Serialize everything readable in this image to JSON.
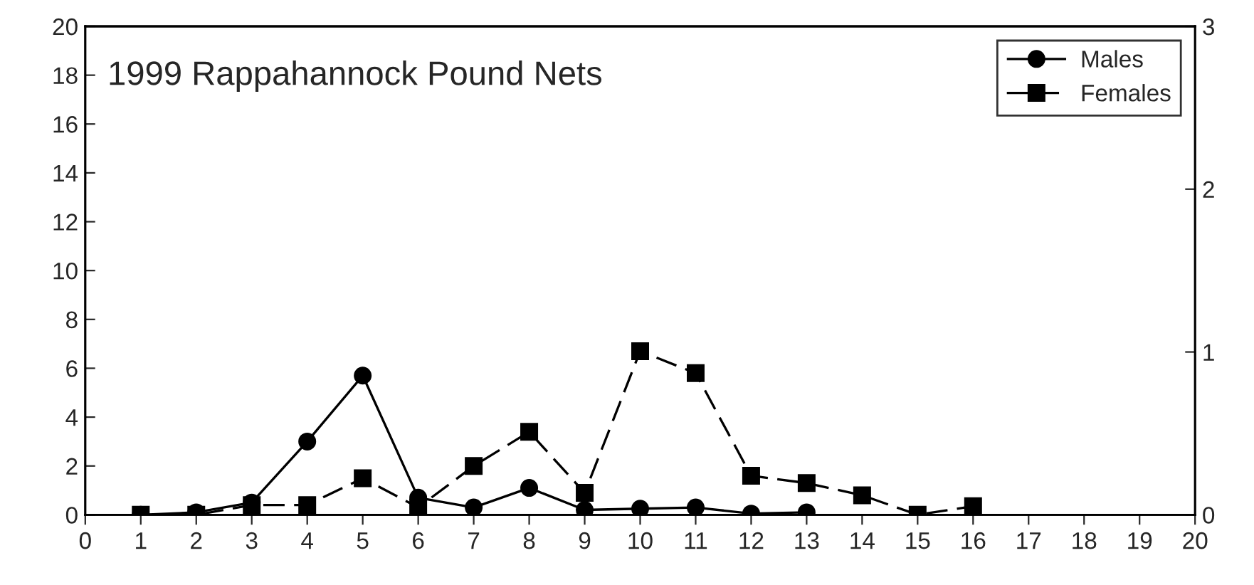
{
  "chart_data": {
    "type": "line",
    "title": "1999 Rappahannock Pound Nets",
    "x": [
      1,
      2,
      3,
      4,
      5,
      6,
      7,
      8,
      9,
      10,
      11,
      12,
      13,
      14,
      15,
      16
    ],
    "series": [
      {
        "name": "Males",
        "color": "#000000",
        "marker": "circle",
        "line_style": "solid",
        "values": [
          0,
          0.1,
          0.5,
          3.0,
          5.7,
          0.7,
          0.3,
          1.1,
          0.2,
          0.25,
          0.3,
          0.05,
          0.1,
          null,
          null,
          null
        ]
      },
      {
        "name": "Females",
        "color": "#000000",
        "marker": "square",
        "line_style": "dashed",
        "values": [
          0,
          0,
          0.4,
          0.4,
          1.5,
          0.3,
          2.0,
          3.4,
          0.9,
          6.7,
          5.8,
          1.6,
          1.3,
          0.8,
          0,
          0.35
        ]
      }
    ],
    "xlim": [
      0,
      20
    ],
    "xticks": [
      0,
      1,
      2,
      3,
      4,
      5,
      6,
      7,
      8,
      9,
      10,
      11,
      12,
      13,
      14,
      15,
      16,
      17,
      18,
      19,
      20
    ],
    "ylim": [
      0,
      20
    ],
    "yticks": [
      0,
      2,
      4,
      6,
      8,
      10,
      12,
      14,
      16,
      18,
      20
    ],
    "y2lim": [
      0,
      3
    ],
    "y2ticks": [
      0,
      1,
      2,
      3
    ],
    "grid": false,
    "legend": "top right"
  }
}
